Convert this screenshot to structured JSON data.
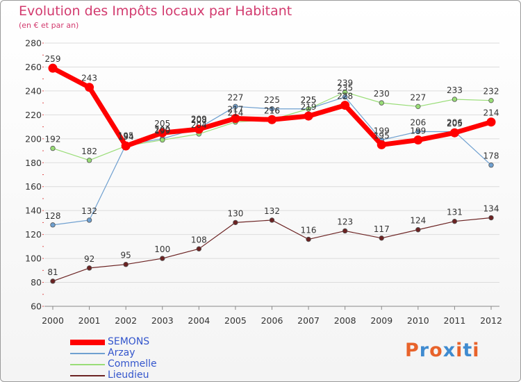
{
  "title": "Evolution des Impôts locaux par Habitant",
  "subtitle": "(en € et par an)",
  "logo": {
    "letters": [
      "P",
      "r",
      "o",
      "x",
      "i",
      "t",
      "i"
    ],
    "colors": [
      "#e8632b",
      "#3f8bd0",
      "#e8632b",
      "#3f8bd0",
      "#e8632b",
      "#3f8bd0",
      "#e8632b"
    ]
  },
  "chart_data": {
    "type": "line",
    "title": "Evolution des Impôts locaux par Habitant",
    "subtitle": "(en € et par an)",
    "xlabel": "",
    "ylabel": "",
    "ylim": [
      60,
      280
    ],
    "y_ticks": [
      60,
      80,
      100,
      120,
      140,
      160,
      180,
      200,
      220,
      240,
      260,
      280
    ],
    "grid": true,
    "legend_position": "bottom-left",
    "categories": [
      "2000",
      "2001",
      "2002",
      "2003",
      "2004",
      "2005",
      "2006",
      "2007",
      "2008",
      "2009",
      "2010",
      "2011",
      "2012"
    ],
    "series": [
      {
        "name": "SEMONS",
        "color": "#ff0000",
        "width": 7,
        "values": [
          259,
          243,
          194,
          205,
          208,
          217,
          216,
          219,
          228,
          195,
          199,
          205,
          214
        ]
      },
      {
        "name": "Arzay",
        "color": "#6fa0d0",
        "width": 1.2,
        "values": [
          128,
          132,
          195,
          200,
          209,
          227,
          225,
          225,
          235,
          199,
          206,
          206,
          178
        ]
      },
      {
        "name": "Commelle",
        "color": "#99dd77",
        "width": 1.2,
        "values": [
          192,
          182,
          194,
          199,
          204,
          214,
          216,
          225,
          239,
          230,
          227,
          233,
          232
        ]
      },
      {
        "name": "Lieudieu",
        "color": "#6b2222",
        "width": 1.2,
        "values": [
          81,
          92,
          95,
          100,
          108,
          130,
          132,
          116,
          123,
          117,
          124,
          131,
          134
        ]
      }
    ]
  }
}
